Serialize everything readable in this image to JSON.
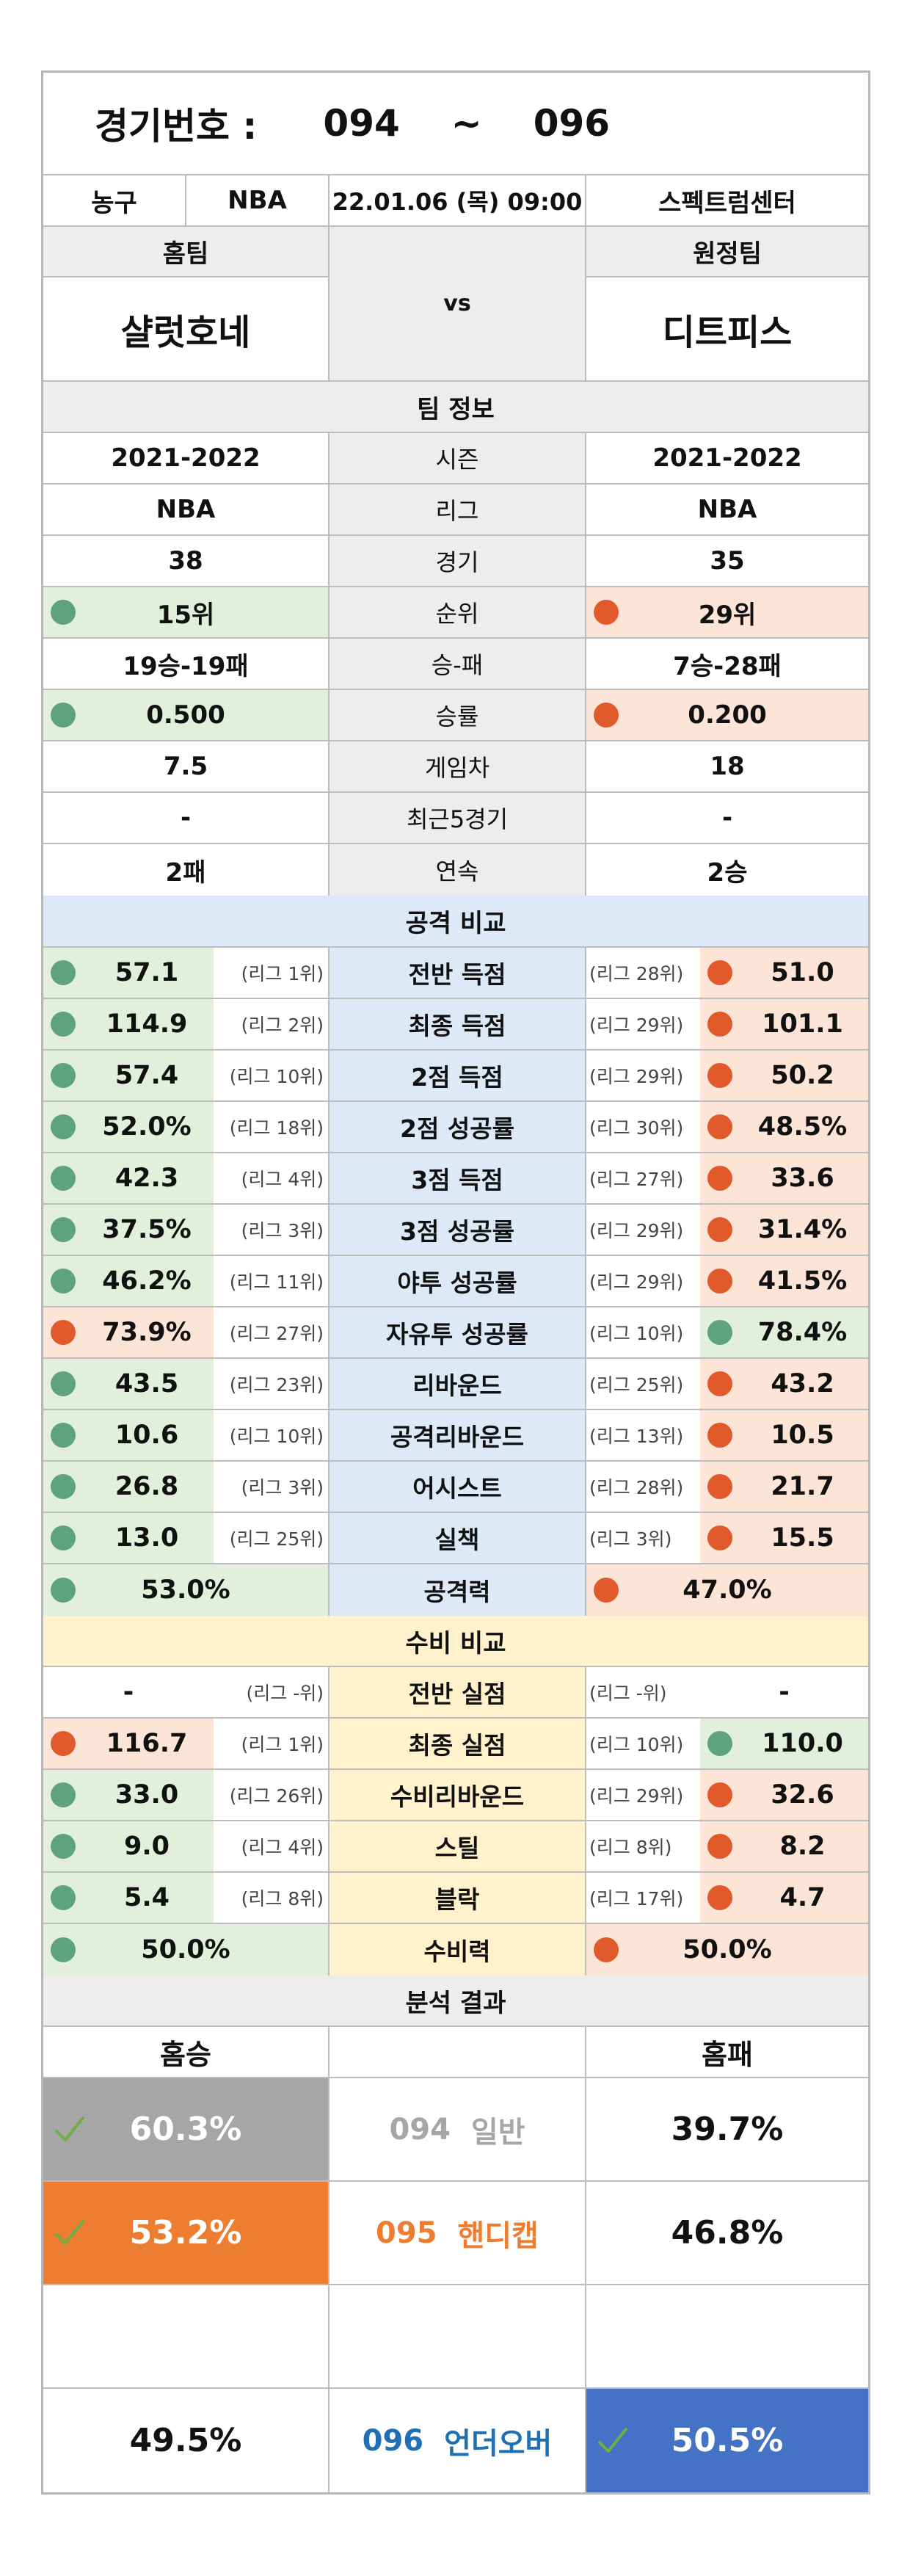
{
  "header": {
    "title_label": "경기번호 :",
    "from": "094",
    "tilde": "~",
    "to": "096"
  },
  "info": {
    "sport": "농구",
    "league": "NBA",
    "datetime": "22.01.06 (목) 09:00",
    "venue": "스펙트럼센터"
  },
  "teams": {
    "home_label": "홈팀",
    "away_label": "원정팀",
    "vs": "vs",
    "home_name": "샬럿호네",
    "away_name": "디트피스"
  },
  "team_info": {
    "title": "팀 정보",
    "rows": [
      {
        "label": "시즌",
        "home": "2021-2022",
        "away": "2021-2022",
        "home_dot": "",
        "away_dot": ""
      },
      {
        "label": "리그",
        "home": "NBA",
        "away": "NBA",
        "home_dot": "",
        "away_dot": ""
      },
      {
        "label": "경기",
        "home": "38",
        "away": "35",
        "home_dot": "",
        "away_dot": ""
      },
      {
        "label": "순위",
        "home": "15위",
        "away": "29위",
        "home_dot": "green",
        "away_dot": "red"
      },
      {
        "label": "승-패",
        "home": "19승-19패",
        "away": "7승-28패",
        "home_dot": "",
        "away_dot": ""
      },
      {
        "label": "승률",
        "home": "0.500",
        "away": "0.200",
        "home_dot": "green",
        "away_dot": "red"
      },
      {
        "label": "게임차",
        "home": "7.5",
        "away": "18",
        "home_dot": "",
        "away_dot": ""
      },
      {
        "label": "최근5경기",
        "home": "-",
        "away": "-",
        "home_dot": "",
        "away_dot": ""
      },
      {
        "label": "연속",
        "home": "2패",
        "away": "2승",
        "home_dot": "",
        "away_dot": ""
      }
    ]
  },
  "attack": {
    "title": "공격 비교",
    "rows": [
      {
        "label": "전반 득점",
        "home": "57.1",
        "home_rank": "(리그 1위)",
        "away": "51.0",
        "away_rank": "(리그 28위)",
        "home_dot": "green",
        "away_dot": "red"
      },
      {
        "label": "최종 득점",
        "home": "114.9",
        "home_rank": "(리그 2위)",
        "away": "101.1",
        "away_rank": "(리그 29위)",
        "home_dot": "green",
        "away_dot": "red"
      },
      {
        "label": "2점 득점",
        "home": "57.4",
        "home_rank": "(리그 10위)",
        "away": "50.2",
        "away_rank": "(리그 29위)",
        "home_dot": "green",
        "away_dot": "red"
      },
      {
        "label": "2점 성공률",
        "home": "52.0%",
        "home_rank": "(리그 18위)",
        "away": "48.5%",
        "away_rank": "(리그 30위)",
        "home_dot": "green",
        "away_dot": "red"
      },
      {
        "label": "3점 득점",
        "home": "42.3",
        "home_rank": "(리그 4위)",
        "away": "33.6",
        "away_rank": "(리그 27위)",
        "home_dot": "green",
        "away_dot": "red"
      },
      {
        "label": "3점 성공률",
        "home": "37.5%",
        "home_rank": "(리그 3위)",
        "away": "31.4%",
        "away_rank": "(리그 29위)",
        "home_dot": "green",
        "away_dot": "red"
      },
      {
        "label": "야투 성공률",
        "home": "46.2%",
        "home_rank": "(리그 11위)",
        "away": "41.5%",
        "away_rank": "(리그 29위)",
        "home_dot": "green",
        "away_dot": "red"
      },
      {
        "label": "자유투 성공률",
        "home": "73.9%",
        "home_rank": "(리그 27위)",
        "away": "78.4%",
        "away_rank": "(리그 10위)",
        "home_dot": "red",
        "away_dot": "green"
      },
      {
        "label": "리바운드",
        "home": "43.5",
        "home_rank": "(리그 23위)",
        "away": "43.2",
        "away_rank": "(리그 25위)",
        "home_dot": "green",
        "away_dot": "red"
      },
      {
        "label": "공격리바운드",
        "home": "10.6",
        "home_rank": "(리그 10위)",
        "away": "10.5",
        "away_rank": "(리그 13위)",
        "home_dot": "green",
        "away_dot": "red"
      },
      {
        "label": "어시스트",
        "home": "26.8",
        "home_rank": "(리그 3위)",
        "away": "21.7",
        "away_rank": "(리그 28위)",
        "home_dot": "green",
        "away_dot": "red"
      },
      {
        "label": "실책",
        "home": "13.0",
        "home_rank": "(리그 25위)",
        "away": "15.5",
        "away_rank": "(리그 3위)",
        "home_dot": "green",
        "away_dot": "red"
      }
    ],
    "power": {
      "label": "공격력",
      "home": "53.0%",
      "away": "47.0%",
      "home_dot": "green",
      "away_dot": "red"
    }
  },
  "defense": {
    "title": "수비 비교",
    "rows": [
      {
        "label": "전반 실점",
        "home": "-",
        "home_rank": "(리그 -위)",
        "away": "-",
        "away_rank": "(리그 -위)",
        "home_dot": "",
        "away_dot": ""
      },
      {
        "label": "최종 실점",
        "home": "116.7",
        "home_rank": "(리그 1위)",
        "away": "110.0",
        "away_rank": "(리그 10위)",
        "home_dot": "red",
        "away_dot": "green"
      },
      {
        "label": "수비리바운드",
        "home": "33.0",
        "home_rank": "(리그 26위)",
        "away": "32.6",
        "away_rank": "(리그 29위)",
        "home_dot": "green",
        "away_dot": "red"
      },
      {
        "label": "스틸",
        "home": "9.0",
        "home_rank": "(리그 4위)",
        "away": "8.2",
        "away_rank": "(리그 8위)",
        "home_dot": "green",
        "away_dot": "red"
      },
      {
        "label": "블락",
        "home": "5.4",
        "home_rank": "(리그 8위)",
        "away": "4.7",
        "away_rank": "(리그 17위)",
        "home_dot": "green",
        "away_dot": "red"
      }
    ],
    "power": {
      "label": "수비력",
      "home": "50.0%",
      "away": "50.0%",
      "home_dot": "green",
      "away_dot": "red"
    }
  },
  "analysis": {
    "title": "분석 결과",
    "home_label": "홈승",
    "away_label": "홈패",
    "rows": [
      {
        "code": "094",
        "type": "일반",
        "home": "60.3%",
        "away": "39.7%",
        "winner": "home",
        "fill": "#a6a6a6",
        "label_color": "#a6a6a6"
      },
      {
        "code": "095",
        "type": "핸디캡",
        "home": "53.2%",
        "away": "46.8%",
        "winner": "home",
        "fill": "#ed7d31",
        "label_color": "#ed7d31"
      },
      {
        "code": "",
        "type": "",
        "home": "",
        "away": "",
        "winner": "",
        "fill": "",
        "label_color": ""
      },
      {
        "code": "096",
        "type": "언더오버",
        "home": "49.5%",
        "away": "50.5%",
        "winner": "away",
        "fill": "#4472c4",
        "label_color": "#1f6fb5"
      }
    ]
  },
  "colors": {
    "green_dot": "#5fa27e",
    "red_dot": "#e05a2b",
    "green_fill": "#e2efdb",
    "orange_fill": "#fce4d6",
    "attack_fill": "#dde9f6",
    "defense_fill": "#fff2cc",
    "header_gray": "#ededed",
    "check": "#70ad47"
  }
}
